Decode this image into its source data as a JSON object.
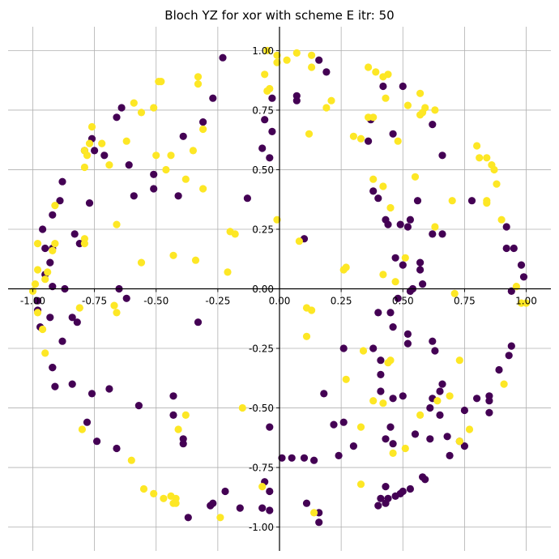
{
  "chart_data": {
    "type": "scatter",
    "title": "Bloch YZ for xor with scheme E itr: 50",
    "xlabel": "",
    "ylabel": "",
    "xlim": [
      -1.1,
      1.1
    ],
    "ylim": [
      -1.1,
      1.1
    ],
    "grid": true,
    "spines": "centered",
    "xticks": [
      "-1.00",
      "-0.75",
      "-0.50",
      "-0.25",
      "0.00",
      "0.25",
      "0.50",
      "0.75",
      "1.00"
    ],
    "yticks": [
      "-1.00",
      "-0.75",
      "-0.50",
      "-0.25",
      "0.00",
      "0.25",
      "0.50",
      "0.75",
      "1.00"
    ],
    "colors": {
      "class0": "#440154",
      "class1": "#fde725"
    },
    "series": [
      {
        "color": "#440154",
        "points": [
          [
            -0.23,
            0.97
          ],
          [
            0.16,
            0.96
          ],
          [
            0.19,
            0.91
          ],
          [
            0.07,
            0.81
          ],
          [
            0.07,
            0.79
          ],
          [
            -0.03,
            0.8
          ],
          [
            -0.06,
            0.71
          ],
          [
            -0.03,
            0.66
          ],
          [
            -0.07,
            0.59
          ],
          [
            -0.04,
            0.55
          ],
          [
            -0.27,
            0.8
          ],
          [
            -0.31,
            0.7
          ],
          [
            -0.39,
            0.64
          ],
          [
            -0.64,
            0.76
          ],
          [
            -0.66,
            0.72
          ],
          [
            -0.76,
            0.63
          ],
          [
            -0.79,
            0.58
          ],
          [
            -0.75,
            0.58
          ],
          [
            -0.71,
            0.56
          ],
          [
            -0.61,
            0.52
          ],
          [
            -0.51,
            0.48
          ],
          [
            -0.51,
            0.42
          ],
          [
            -0.41,
            0.39
          ],
          [
            -0.59,
            0.39
          ],
          [
            -0.88,
            0.45
          ],
          [
            -0.89,
            0.37
          ],
          [
            -0.92,
            0.31
          ],
          [
            -0.96,
            0.25
          ],
          [
            -0.92,
            0.17
          ],
          [
            -0.93,
            0.11
          ],
          [
            -0.95,
            0.06
          ],
          [
            -0.92,
            0.01
          ],
          [
            -0.87,
            0.0
          ],
          [
            -0.77,
            0.36
          ],
          [
            -0.83,
            0.23
          ],
          [
            -0.81,
            0.19
          ],
          [
            -0.13,
            0.38
          ],
          [
            0.1,
            0.21
          ],
          [
            0.37,
            0.71
          ],
          [
            0.36,
            0.62
          ],
          [
            0.38,
            0.41
          ],
          [
            0.4,
            0.38
          ],
          [
            0.43,
            0.29
          ],
          [
            0.44,
            0.27
          ],
          [
            0.42,
            0.85
          ],
          [
            0.5,
            0.85
          ],
          [
            0.46,
            0.65
          ],
          [
            0.56,
            0.37
          ],
          [
            0.49,
            0.27
          ],
          [
            0.52,
            0.26
          ],
          [
            0.53,
            0.29
          ],
          [
            0.57,
            0.11
          ],
          [
            0.57,
            0.08
          ],
          [
            0.54,
            0.0
          ],
          [
            0.53,
            -0.01
          ],
          [
            0.47,
            0.13
          ],
          [
            0.5,
            0.1
          ],
          [
            0.58,
            0.02
          ],
          [
            0.62,
            0.69
          ],
          [
            0.66,
            0.56
          ],
          [
            0.62,
            0.23
          ],
          [
            0.66,
            0.23
          ],
          [
            0.78,
            0.37
          ],
          [
            0.92,
            0.17
          ],
          [
            0.95,
            0.17
          ],
          [
            0.92,
            0.26
          ],
          [
            0.98,
            0.1
          ],
          [
            0.99,
            0.05
          ],
          [
            0.94,
            -0.01
          ],
          [
            0.94,
            -0.24
          ],
          [
            0.93,
            -0.28
          ],
          [
            0.89,
            -0.34
          ],
          [
            0.85,
            -0.45
          ],
          [
            0.85,
            -0.47
          ],
          [
            0.85,
            -0.52
          ],
          [
            0.8,
            -0.46
          ],
          [
            0.75,
            -0.51
          ],
          [
            0.75,
            -0.66
          ],
          [
            0.73,
            -0.64
          ],
          [
            0.69,
            -0.7
          ],
          [
            0.68,
            -0.62
          ],
          [
            0.66,
            -0.4
          ],
          [
            0.65,
            -0.43
          ],
          [
            0.65,
            -0.53
          ],
          [
            0.62,
            -0.46
          ],
          [
            0.61,
            -0.5
          ],
          [
            0.63,
            -0.26
          ],
          [
            0.62,
            -0.22
          ],
          [
            0.61,
            -0.63
          ],
          [
            0.55,
            -0.61
          ],
          [
            0.58,
            -0.79
          ],
          [
            0.59,
            -0.8
          ],
          [
            0.53,
            -0.84
          ],
          [
            0.49,
            -0.86
          ],
          [
            0.5,
            -0.85
          ],
          [
            0.47,
            -0.87
          ],
          [
            0.44,
            -0.88
          ],
          [
            0.43,
            -0.9
          ],
          [
            0.43,
            -0.83
          ],
          [
            0.41,
            -0.88
          ],
          [
            0.4,
            -0.91
          ],
          [
            0.46,
            -0.65
          ],
          [
            0.45,
            -0.58
          ],
          [
            0.43,
            -0.63
          ],
          [
            0.46,
            -0.46
          ],
          [
            0.5,
            -0.45
          ],
          [
            0.41,
            -0.43
          ],
          [
            0.41,
            -0.36
          ],
          [
            0.41,
            -0.3
          ],
          [
            0.38,
            -0.25
          ],
          [
            0.46,
            -0.16
          ],
          [
            0.45,
            -0.1
          ],
          [
            0.52,
            -0.19
          ],
          [
            0.52,
            -0.23
          ],
          [
            0.48,
            -0.04
          ],
          [
            0.4,
            -0.1
          ],
          [
            0.3,
            -0.66
          ],
          [
            0.24,
            -0.7
          ],
          [
            0.22,
            -0.57
          ],
          [
            0.26,
            -0.56
          ],
          [
            0.18,
            -0.44
          ],
          [
            0.26,
            -0.25
          ],
          [
            0.14,
            -0.72
          ],
          [
            0.1,
            -0.71
          ],
          [
            0.05,
            -0.71
          ],
          [
            0.01,
            -0.71
          ],
          [
            0.11,
            -0.9
          ],
          [
            0.16,
            -0.94
          ],
          [
            0.16,
            -0.98
          ],
          [
            -0.06,
            -0.81
          ],
          [
            -0.04,
            -0.85
          ],
          [
            -0.07,
            -0.92
          ],
          [
            -0.04,
            -0.93
          ],
          [
            -0.04,
            -0.58
          ],
          [
            -0.16,
            -0.92
          ],
          [
            -0.27,
            -0.9
          ],
          [
            -0.28,
            -0.91
          ],
          [
            -0.22,
            -0.85
          ],
          [
            -0.37,
            -0.96
          ],
          [
            -0.39,
            -0.65
          ],
          [
            -0.39,
            -0.63
          ],
          [
            -0.43,
            -0.53
          ],
          [
            -0.43,
            -0.45
          ],
          [
            -0.57,
            -0.49
          ],
          [
            -0.33,
            -0.14
          ],
          [
            -0.66,
            -0.67
          ],
          [
            -0.74,
            -0.64
          ],
          [
            -0.76,
            -0.44
          ],
          [
            -0.69,
            -0.42
          ],
          [
            -0.78,
            -0.56
          ],
          [
            -0.84,
            -0.4
          ],
          [
            -0.91,
            -0.41
          ],
          [
            -0.92,
            -0.33
          ],
          [
            -0.92,
            -0.33
          ],
          [
            -0.88,
            -0.22
          ],
          [
            -0.82,
            -0.14
          ],
          [
            -0.84,
            -0.12
          ],
          [
            -0.93,
            -0.12
          ],
          [
            -0.97,
            -0.16
          ],
          [
            -0.98,
            -0.05
          ],
          [
            -0.98,
            -0.09
          ],
          [
            -0.65,
            0.0
          ],
          [
            -0.62,
            -0.04
          ],
          [
            -0.95,
            0.17
          ]
        ]
      },
      {
        "color": "#fde725",
        "points": [
          [
            -0.05,
            1.0
          ],
          [
            -0.01,
            0.98
          ],
          [
            -0.01,
            0.95
          ],
          [
            0.03,
            0.96
          ],
          [
            0.07,
            0.99
          ],
          [
            0.13,
            0.98
          ],
          [
            0.13,
            0.93
          ],
          [
            0.21,
            0.79
          ],
          [
            0.19,
            0.76
          ],
          [
            0.12,
            0.65
          ],
          [
            -0.06,
            0.9
          ],
          [
            -0.04,
            0.84
          ],
          [
            -0.05,
            0.83
          ],
          [
            0.36,
            0.93
          ],
          [
            0.39,
            0.91
          ],
          [
            0.42,
            0.89
          ],
          [
            0.44,
            0.9
          ],
          [
            0.43,
            0.8
          ],
          [
            0.52,
            0.77
          ],
          [
            0.57,
            0.82
          ],
          [
            0.59,
            0.76
          ],
          [
            0.63,
            0.75
          ],
          [
            0.57,
            0.73
          ],
          [
            0.58,
            0.74
          ],
          [
            0.36,
            0.72
          ],
          [
            0.38,
            0.72
          ],
          [
            0.3,
            0.64
          ],
          [
            0.33,
            0.63
          ],
          [
            0.48,
            0.62
          ],
          [
            0.55,
            0.47
          ],
          [
            0.38,
            0.46
          ],
          [
            0.42,
            0.43
          ],
          [
            0.45,
            0.34
          ],
          [
            0.63,
            0.26
          ],
          [
            0.7,
            0.37
          ],
          [
            0.8,
            0.6
          ],
          [
            0.81,
            0.55
          ],
          [
            0.84,
            0.55
          ],
          [
            0.86,
            0.52
          ],
          [
            0.87,
            0.5
          ],
          [
            0.88,
            0.44
          ],
          [
            0.84,
            0.37
          ],
          [
            0.84,
            0.36
          ],
          [
            0.9,
            0.29
          ],
          [
            0.51,
            0.13
          ],
          [
            0.42,
            0.06
          ],
          [
            0.47,
            0.03
          ],
          [
            0.71,
            -0.02
          ],
          [
            0.98,
            -0.06
          ],
          [
            1.0,
            -0.06
          ],
          [
            0.96,
            0.01
          ],
          [
            0.26,
            0.08
          ],
          [
            0.27,
            0.09
          ],
          [
            0.08,
            0.2
          ],
          [
            -0.01,
            0.29
          ],
          [
            -0.48,
            0.87
          ],
          [
            -0.49,
            0.87
          ],
          [
            -0.33,
            0.89
          ],
          [
            -0.33,
            0.86
          ],
          [
            -0.31,
            0.67
          ],
          [
            -0.51,
            0.76
          ],
          [
            -0.56,
            0.74
          ],
          [
            -0.59,
            0.78
          ],
          [
            -0.76,
            0.68
          ],
          [
            -0.77,
            0.61
          ],
          [
            -0.72,
            0.61
          ],
          [
            -0.79,
            0.58
          ],
          [
            -0.78,
            0.56
          ],
          [
            -0.79,
            0.51
          ],
          [
            -0.69,
            0.52
          ],
          [
            -0.62,
            0.62
          ],
          [
            -0.5,
            0.56
          ],
          [
            -0.44,
            0.56
          ],
          [
            -0.46,
            0.5
          ],
          [
            -0.38,
            0.46
          ],
          [
            -0.35,
            0.58
          ],
          [
            -0.31,
            0.42
          ],
          [
            -0.91,
            0.35
          ],
          [
            -0.66,
            0.27
          ],
          [
            -0.2,
            0.24
          ],
          [
            -0.18,
            0.23
          ],
          [
            -0.56,
            0.11
          ],
          [
            -0.43,
            0.14
          ],
          [
            -0.34,
            0.12
          ],
          [
            -0.21,
            0.07
          ],
          [
            -0.91,
            0.19
          ],
          [
            -0.92,
            0.16
          ],
          [
            -0.79,
            0.21
          ],
          [
            -0.79,
            0.19
          ],
          [
            -0.98,
            0.08
          ],
          [
            -0.94,
            0.07
          ],
          [
            -0.95,
            0.04
          ],
          [
            -0.99,
            0.02
          ],
          [
            -1.0,
            -0.01
          ],
          [
            -0.98,
            -0.1
          ],
          [
            -0.81,
            -0.08
          ],
          [
            -0.67,
            -0.07
          ],
          [
            -0.66,
            -0.1
          ],
          [
            -0.98,
            0.19
          ],
          [
            -0.96,
            -0.17
          ],
          [
            -0.95,
            -0.27
          ],
          [
            -0.8,
            -0.59
          ],
          [
            -0.6,
            -0.72
          ],
          [
            -0.55,
            -0.84
          ],
          [
            -0.51,
            -0.86
          ],
          [
            -0.47,
            -0.88
          ],
          [
            -0.44,
            -0.87
          ],
          [
            -0.42,
            -0.88
          ],
          [
            -0.43,
            -0.9
          ],
          [
            -0.42,
            -0.9
          ],
          [
            -0.38,
            -0.53
          ],
          [
            -0.41,
            -0.59
          ],
          [
            -0.24,
            -0.96
          ],
          [
            -0.15,
            -0.5
          ],
          [
            -0.07,
            -0.83
          ],
          [
            0.14,
            -0.94
          ],
          [
            0.11,
            -0.08
          ],
          [
            0.13,
            -0.09
          ],
          [
            0.11,
            -0.2
          ],
          [
            0.27,
            -0.38
          ],
          [
            0.34,
            -0.26
          ],
          [
            0.38,
            -0.47
          ],
          [
            0.33,
            -0.58
          ],
          [
            0.33,
            -0.82
          ],
          [
            0.45,
            -0.3
          ],
          [
            0.44,
            -0.31
          ],
          [
            0.42,
            -0.48
          ],
          [
            0.51,
            -0.67
          ],
          [
            0.46,
            -0.69
          ],
          [
            0.57,
            -0.53
          ],
          [
            0.64,
            -0.47
          ],
          [
            0.69,
            -0.45
          ],
          [
            0.73,
            -0.3
          ],
          [
            0.77,
            -0.59
          ],
          [
            0.73,
            -0.64
          ],
          [
            0.91,
            -0.4
          ]
        ]
      }
    ]
  }
}
